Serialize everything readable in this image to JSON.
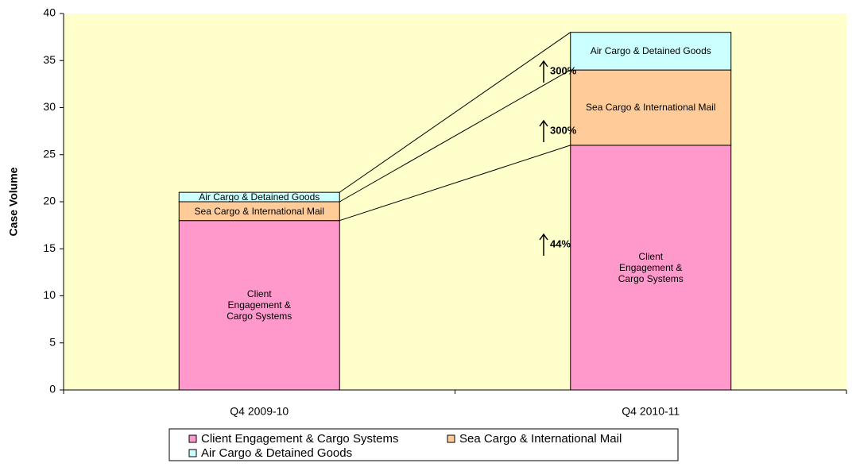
{
  "chart_data": {
    "type": "stacked_bar",
    "y_label": "Case Volume",
    "categories": [
      "Q4 2009-10",
      "Q4 2010-11"
    ],
    "series": [
      {
        "name": "Client Engagement & Cargo Systems",
        "color": "#ff99cc",
        "values": [
          18,
          26
        ]
      },
      {
        "name": "Sea Cargo & International Mail",
        "color": "#ffcc99",
        "values": [
          2,
          8
        ]
      },
      {
        "name": "Air Cargo & Detained Goods",
        "color": "#ccffff",
        "values": [
          1,
          4
        ]
      }
    ],
    "annotations": [
      "44%",
      "300%",
      "300%"
    ],
    "ylim": [
      0,
      40
    ],
    "yticks": [
      0,
      5,
      10,
      15,
      20,
      25,
      30,
      35,
      40
    ],
    "plot_background": "#ffffcc"
  }
}
